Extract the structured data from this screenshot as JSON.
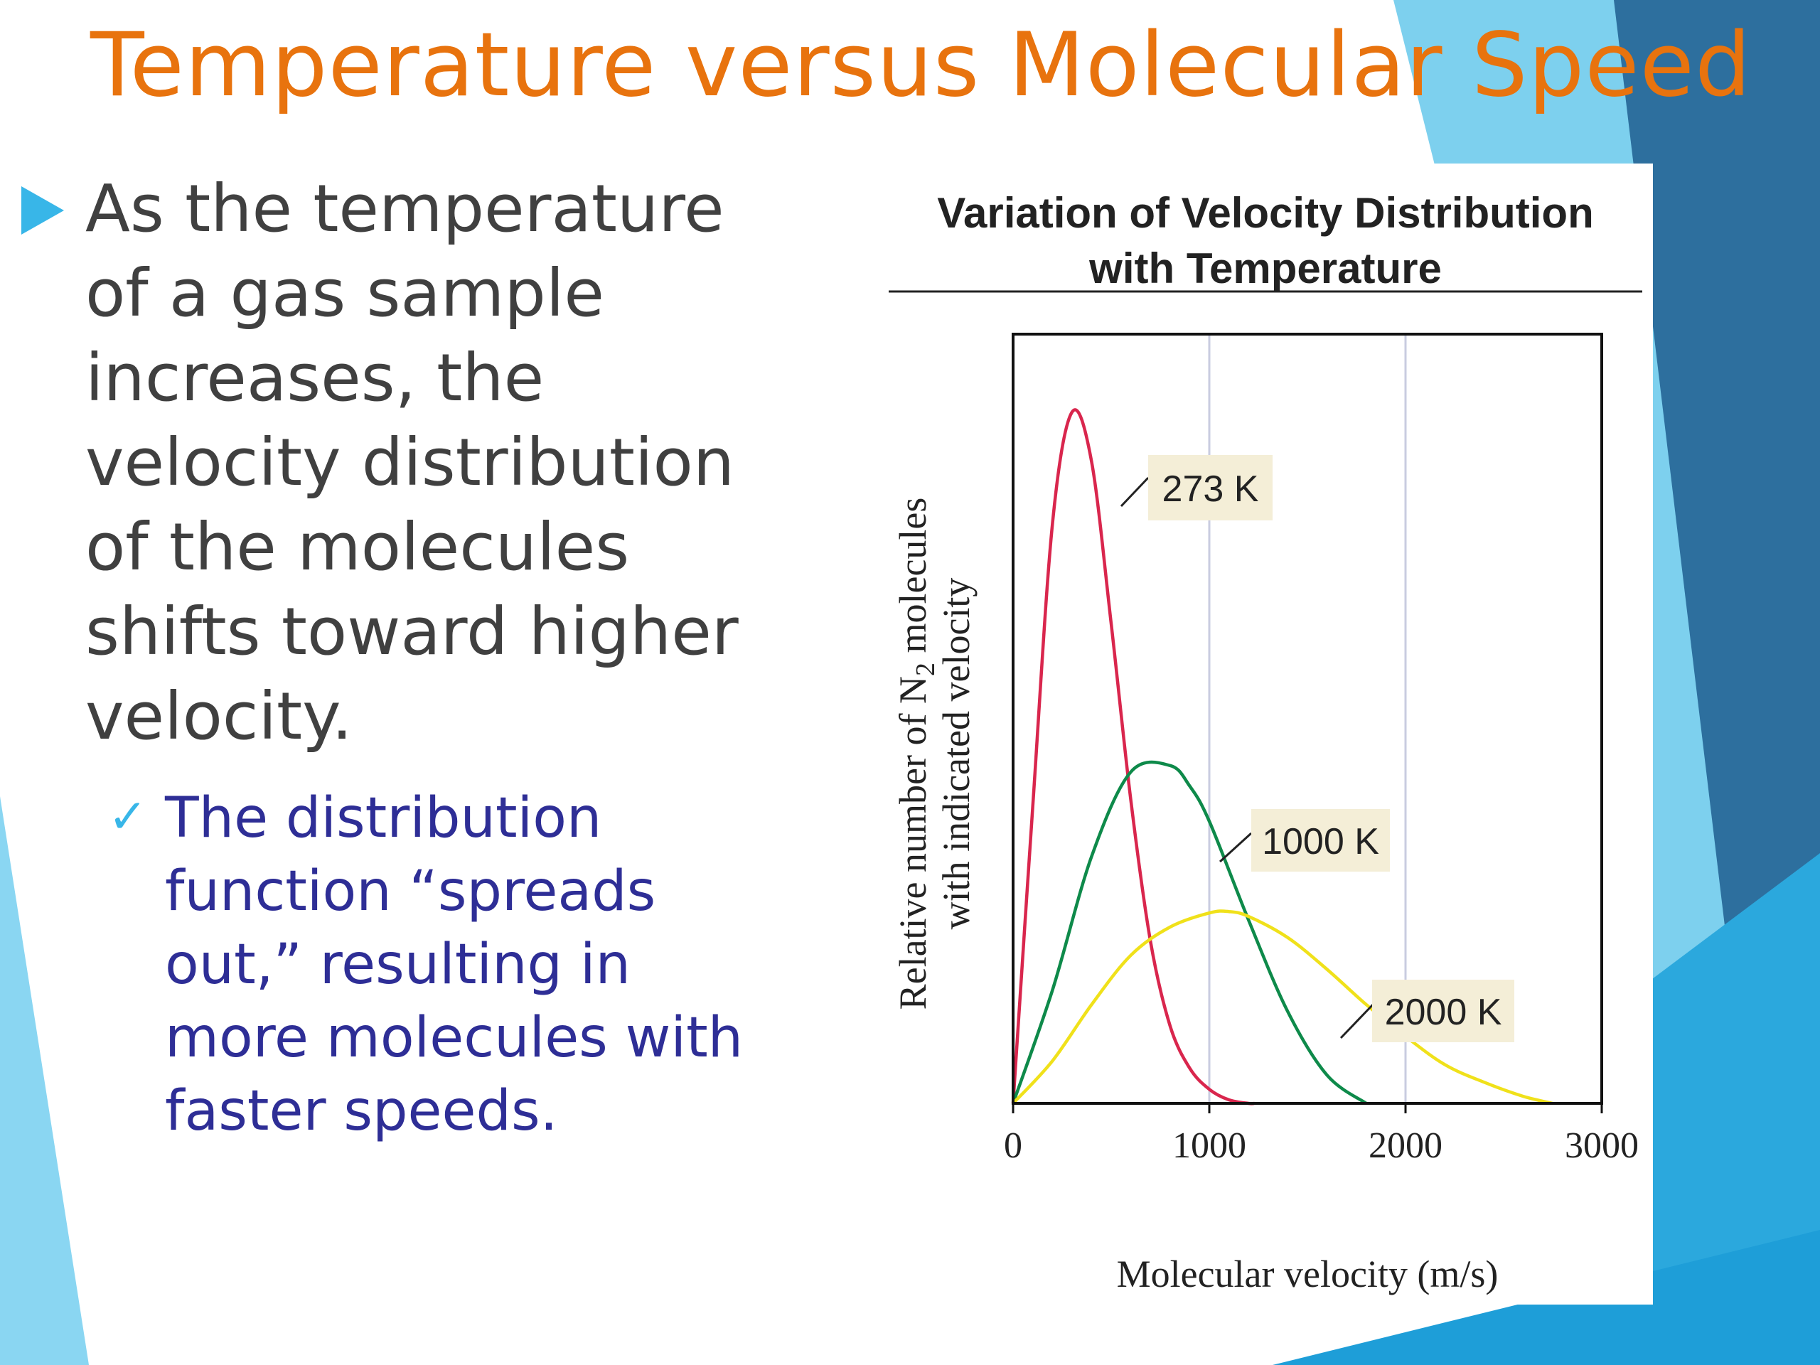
{
  "slide": {
    "title": "Temperature versus Molecular Speed",
    "bullet": "As the temperature of a gas sample increases, the velocity distribution of the molecules shifts toward higher velocity.",
    "sub_bullet": "The distribution function “spreads out,” resulting in more molecules with faster speeds.",
    "colors": {
      "title": "#E8730E",
      "accent": "#38B6E8",
      "body": "#404040",
      "sub": "#2E2E96"
    }
  },
  "chart_data": {
    "type": "line",
    "title": "Variation of Velocity Distribution with Temperature",
    "xlabel": "Molecular velocity (m/s)",
    "ylabel_prefix": "Relative number of N",
    "ylabel_sub": "2",
    "ylabel_suffix": " molecules",
    "ylabel2": "with indicated velocity",
    "xlim": [
      0,
      3000
    ],
    "ylim": [
      0,
      1
    ],
    "xticks": [
      "0",
      "1000",
      "2000",
      "3000"
    ],
    "x_gridlines": [
      1000,
      2000
    ],
    "series": [
      {
        "name": "273 K",
        "color": "#D9264D",
        "x": [
          0,
          100,
          200,
          300,
          400,
          500,
          600,
          700,
          800,
          900,
          1000,
          1100,
          1200,
          1230
        ],
        "y": [
          0,
          0.42,
          0.82,
          0.98,
          0.91,
          0.68,
          0.43,
          0.23,
          0.11,
          0.05,
          0.02,
          0.005,
          0.0,
          0.0
        ]
      },
      {
        "name": "1000 K",
        "color": "#0E8A4A",
        "x": [
          0,
          200,
          400,
          600,
          800,
          900,
          1000,
          1200,
          1400,
          1600,
          1800
        ],
        "y": [
          0,
          0.16,
          0.35,
          0.47,
          0.479,
          0.45,
          0.4,
          0.26,
          0.13,
          0.04,
          0.0
        ]
      },
      {
        "name": "2000 K",
        "color": "#F0E11A",
        "x": [
          0,
          200,
          400,
          600,
          800,
          1000,
          1100,
          1200,
          1400,
          1600,
          1800,
          2000,
          2200,
          2400,
          2600,
          2750
        ],
        "y": [
          0,
          0.06,
          0.14,
          0.21,
          0.25,
          0.27,
          0.272,
          0.265,
          0.235,
          0.19,
          0.14,
          0.095,
          0.055,
          0.03,
          0.01,
          0.0
        ]
      }
    ],
    "labels": [
      {
        "text": "273 K",
        "series": "273 K"
      },
      {
        "text": "1000 K",
        "series": "1000 K"
      },
      {
        "text": "2000 K",
        "series": "2000 K"
      }
    ]
  }
}
